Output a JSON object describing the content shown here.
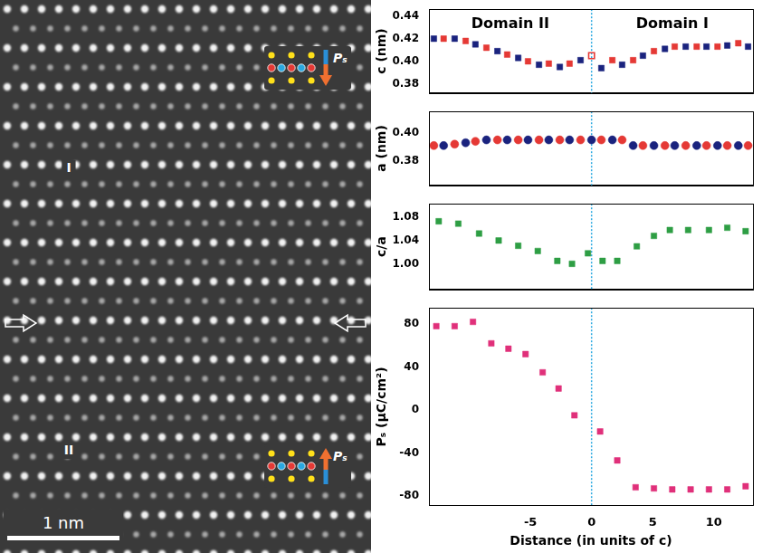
{
  "image": {
    "domain_labels": [
      "I",
      "II"
    ],
    "scale_bar": "1 nm",
    "polarization_label": "Pₛ"
  },
  "chart_data": [
    {
      "type": "scatter",
      "y_label": "c (nm)",
      "annotations": [
        "Domain II",
        "Domain I"
      ],
      "boundary_x": 0,
      "xlim": [
        -13.3,
        13.2
      ],
      "xticks": [
        -5,
        0,
        5,
        10
      ],
      "ylim": [
        0.372,
        0.446
      ],
      "yticks": [
        0.38,
        {
          "value": 0.4,
          "label": "0.40"
        },
        0.42,
        0.44
      ],
      "grid": false,
      "tick_labels": "y",
      "series": [
        {
          "marker": "square",
          "x": [
            -12.9,
            -12.1,
            -11.2,
            -10.3,
            -9.5,
            -8.6,
            -7.7,
            -6.9,
            -6.0,
            -5.2,
            -4.3,
            -3.5,
            -2.6,
            -1.8,
            -0.9,
            0.8,
            1.7,
            2.5,
            3.4,
            4.2,
            5.1,
            6.0,
            6.8,
            7.7,
            8.6,
            9.4,
            10.3,
            11.1,
            12.0,
            12.8
          ],
          "values": [
            0.42,
            0.42,
            0.42,
            0.418,
            0.415,
            0.412,
            0.409,
            0.406,
            0.403,
            0.4,
            0.397,
            0.398,
            0.395,
            0.398,
            0.401,
            0.394,
            0.401,
            0.397,
            0.401,
            0.405,
            0.409,
            0.411,
            0.413,
            0.413,
            0.413,
            0.413,
            0.413,
            0.414,
            0.416,
            0.413
          ],
          "colors": [
            "#1a237e",
            "#e53935",
            "#1a237e",
            "#e53935",
            "#1a237e",
            "#e53935",
            "#1a237e",
            "#e53935",
            "#1a237e",
            "#e53935",
            "#1a237e",
            "#e53935",
            "#1a237e",
            "#e53935",
            "#1a237e",
            "#1a237e",
            "#e53935",
            "#1a237e",
            "#e53935",
            "#1a237e",
            "#e53935",
            "#1a237e",
            "#e53935",
            "#1a237e",
            "#e53935",
            "#1a237e",
            "#e53935",
            "#1a237e",
            "#e53935",
            "#1a237e"
          ]
        },
        {
          "marker": "open_square",
          "color": "#e53935",
          "x": [
            0
          ],
          "values": [
            0.405
          ]
        }
      ]
    },
    {
      "type": "scatter",
      "y_label": "a (nm)",
      "boundary_x": 0,
      "xlim": [
        -13.3,
        13.2
      ],
      "xticks": [
        -5,
        0,
        5,
        10
      ],
      "ylim": [
        0.363,
        0.415
      ],
      "yticks": [
        0.38,
        {
          "value": 0.4,
          "label": "0.40"
        }
      ],
      "grid": false,
      "tick_labels": "y",
      "series": [
        {
          "marker": "circle",
          "x": [
            -12.9,
            -12.1,
            -11.2,
            -10.3,
            -9.5,
            -8.6,
            -7.7,
            -6.9,
            -6.0,
            -5.2,
            -4.3,
            -3.5,
            -2.6,
            -1.8,
            -0.9,
            0,
            0.8,
            1.7,
            2.5,
            3.4,
            4.2,
            5.1,
            6.0,
            6.8,
            7.7,
            8.6,
            9.4,
            10.3,
            11.1,
            12.0,
            12.8
          ],
          "values": [
            0.391,
            0.391,
            0.392,
            0.393,
            0.394,
            0.395,
            0.395,
            0.395,
            0.395,
            0.395,
            0.395,
            0.395,
            0.395,
            0.395,
            0.395,
            0.395,
            0.395,
            0.395,
            0.395,
            0.391,
            0.391,
            0.391,
            0.391,
            0.391,
            0.391,
            0.391,
            0.391,
            0.391,
            0.391,
            0.391,
            0.391
          ],
          "colors": [
            "#e53935",
            "#1a237e",
            "#e53935",
            "#1a237e",
            "#e53935",
            "#1a237e",
            "#e53935",
            "#1a237e",
            "#e53935",
            "#1a237e",
            "#e53935",
            "#1a237e",
            "#e53935",
            "#1a237e",
            "#e53935",
            "#1a237e",
            "#e53935",
            "#1a237e",
            "#e53935",
            "#1a237e",
            "#e53935",
            "#1a237e",
            "#e53935",
            "#1a237e",
            "#e53935",
            "#1a237e",
            "#e53935",
            "#1a237e",
            "#e53935",
            "#1a237e",
            "#e53935"
          ]
        }
      ]
    },
    {
      "type": "scatter",
      "y_label": "c/a",
      "boundary_x": 0,
      "xlim": [
        -13.3,
        13.2
      ],
      "xticks": [
        -5,
        0,
        5,
        10
      ],
      "ylim": [
        0.956,
        1.103
      ],
      "yticks": [
        {
          "value": 1,
          "label": "1.00"
        },
        1.04,
        1.08
      ],
      "grid": false,
      "tick_labels": "y",
      "series": [
        {
          "marker": "square",
          "color": "#2e9e44",
          "x": [
            -12.5,
            -10.9,
            -9.2,
            -7.6,
            -6.0,
            -4.4,
            -2.8,
            -1.6,
            -0.3,
            0.9,
            2.1,
            3.7,
            5.1,
            6.4,
            7.9,
            9.6,
            11.1,
            12.6
          ],
          "values": [
            1.073,
            1.069,
            1.052,
            1.04,
            1.031,
            1.022,
            1.005,
            1.0,
            1.018,
            1.005,
            1.005,
            1.03,
            1.048,
            1.058,
            1.058,
            1.058,
            1.062,
            1.056
          ]
        }
      ]
    },
    {
      "type": "scatter",
      "y_label": "Pₛ (μC/cm²)",
      "x_label": "Distance (in units of c)",
      "boundary_x": 0,
      "xlim": [
        -13.3,
        13.2
      ],
      "xticks": [
        -5,
        0,
        5,
        10
      ],
      "ylim": [
        -89,
        95
      ],
      "yticks": [
        -80,
        -40,
        0,
        40,
        80
      ],
      "grid": false,
      "tick_labels": true,
      "series": [
        {
          "marker": "square",
          "color": "#e0307a",
          "x": [
            -12.7,
            -11.2,
            -9.7,
            -8.2,
            -6.8,
            -5.4,
            -4.0,
            -2.7,
            -1.4,
            0.7,
            2.1,
            3.6,
            5.1,
            6.6,
            8.1,
            9.6,
            11.1,
            12.6
          ],
          "values": [
            78,
            78,
            82,
            62,
            57,
            52,
            35,
            20,
            -5,
            -20,
            -47,
            -72,
            -73,
            -74,
            -74,
            -74,
            -74,
            -71
          ]
        }
      ]
    }
  ]
}
